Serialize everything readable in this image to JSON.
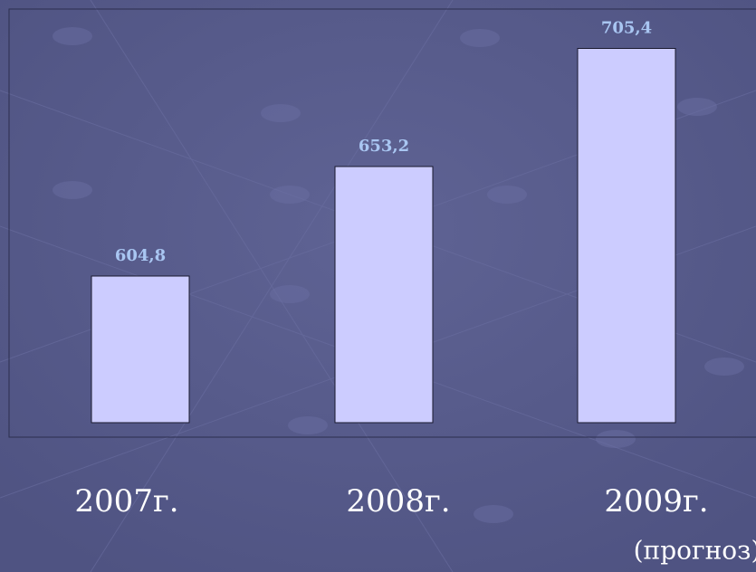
{
  "chart_data": {
    "type": "bar",
    "categories": [
      "2007г.",
      "2008г.",
      "2009г."
    ],
    "values": [
      604.8,
      653.2,
      705.4
    ],
    "value_labels": [
      "604,8",
      "653,2",
      "705,4"
    ],
    "annotation": "(прогноз)",
    "color": "#ccccff",
    "ylim": [
      540,
      720
    ]
  }
}
